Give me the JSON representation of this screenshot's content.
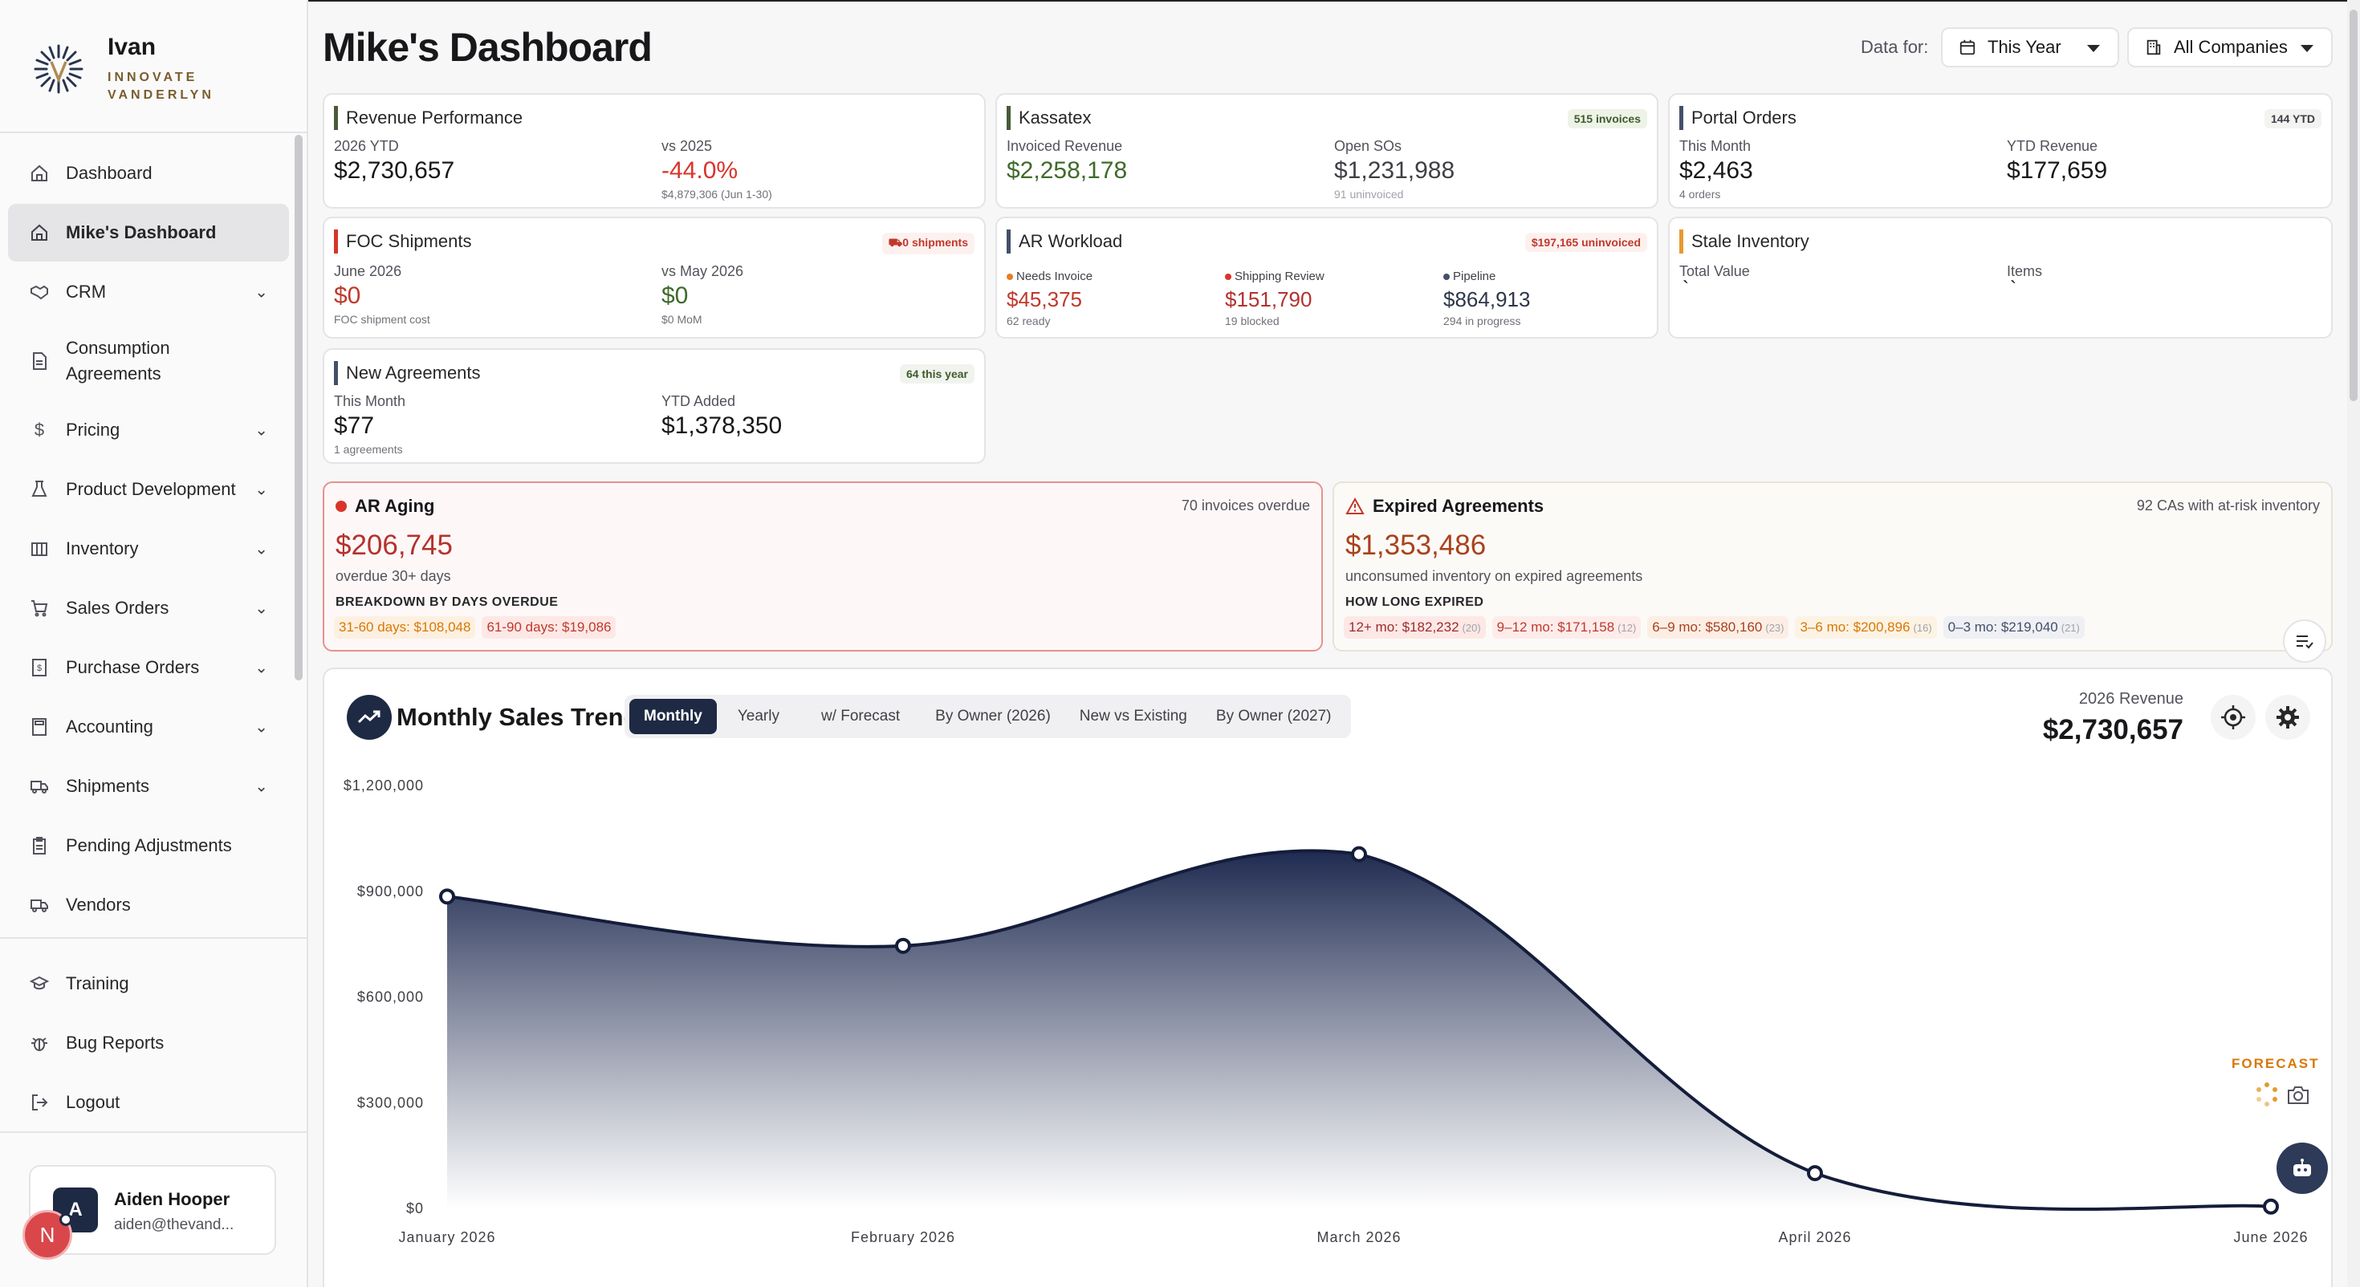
{
  "brand": {
    "name": "Ivan",
    "sub1": "INNOVATE",
    "sub2": "VANDERLYN"
  },
  "sidebar": {
    "items": [
      {
        "label": "Dashboard",
        "icon": "home-icon"
      },
      {
        "label": "Mike's Dashboard",
        "icon": "home-icon",
        "active": true
      },
      {
        "label": "CRM",
        "icon": "handshake-icon",
        "chevron": true
      },
      {
        "label": "Consumption Agreements",
        "icon": "document-icon"
      },
      {
        "label": "Pricing",
        "icon": "dollar-icon",
        "chevron": true
      },
      {
        "label": "Product Development",
        "icon": "flask-icon",
        "chevron": true
      },
      {
        "label": "Inventory",
        "icon": "warehouse-icon",
        "chevron": true
      },
      {
        "label": "Sales Orders",
        "icon": "cart-icon",
        "chevron": true
      },
      {
        "label": "Purchase Orders",
        "icon": "receipt-icon",
        "chevron": true
      },
      {
        "label": "Accounting",
        "icon": "calculator-icon",
        "chevron": true
      },
      {
        "label": "Shipments",
        "icon": "truck-icon",
        "chevron": true
      },
      {
        "label": "Pending Adjustments",
        "icon": "clipboard-icon"
      },
      {
        "label": "Vendors",
        "icon": "truck-icon"
      }
    ],
    "bottom": [
      {
        "label": "Training",
        "icon": "graduation-cap-icon"
      },
      {
        "label": "Bug Reports",
        "icon": "bug-icon"
      },
      {
        "label": "Logout",
        "icon": "logout-icon"
      }
    ]
  },
  "user": {
    "initial": "A",
    "name": "Aiden Hooper",
    "email": "aiden@thevand...",
    "notif": "N"
  },
  "header": {
    "title": "Mike's Dashboard",
    "data_for": "Data for:",
    "period": "This Year",
    "companies": "All Companies"
  },
  "cards": {
    "revenue": {
      "title": "Revenue Performance",
      "l1": "2026 YTD",
      "v1": "$2,730,657",
      "l2": "vs 2025",
      "v2": "-44.0%",
      "s2": "$4,879,306 (Jun 1-30)"
    },
    "kassatex": {
      "title": "Kassatex",
      "badge": "515 invoices",
      "l1": "Invoiced Revenue",
      "v1": "$2,258,178",
      "l2": "Open SOs",
      "v2": "$1,231,988",
      "s2": "91 uninvoiced"
    },
    "portal": {
      "title": "Portal Orders",
      "badge": "144 YTD",
      "l1": "This Month",
      "v1": "$2,463",
      "s1": "4 orders",
      "l2": "YTD Revenue",
      "v2": "$177,659"
    },
    "foc": {
      "title": "FOC Shipments",
      "badge": "0 shipments",
      "l1": "June 2026",
      "v1": "$0",
      "s1": "FOC shipment cost",
      "l2": "vs May 2026",
      "v2": "$0",
      "s2": "$0 MoM"
    },
    "ar": {
      "title": "AR Workload",
      "badge": "$197,165 uninvoiced",
      "a_l": "Needs Invoice",
      "a_v": "$45,375",
      "a_s": "62 ready",
      "b_l": "Shipping Review",
      "b_v": "$151,790",
      "b_s": "19 blocked",
      "c_l": "Pipeline",
      "c_v": "$864,913",
      "c_s": "294 in progress"
    },
    "stale": {
      "title": "Stale Inventory",
      "l1": "Total Value",
      "v1": "`",
      "l2": "Items",
      "v2": "`"
    },
    "agreements": {
      "title": "New Agreements",
      "badge": "64 this year",
      "l1": "This Month",
      "v1": "$77",
      "s1": "1 agreements",
      "l2": "YTD Added",
      "v2": "$1,378,350"
    }
  },
  "ar_aging": {
    "title": "AR Aging",
    "right": "70 invoices overdue",
    "value": "$206,745",
    "sub": "overdue 30+ days",
    "breakdown": "BREAKDOWN BY DAYS OVERDUE",
    "pills": [
      {
        "text": "31-60 days: $108,048"
      },
      {
        "text": "61-90 days: $19,086"
      }
    ]
  },
  "expired": {
    "title": "Expired Agreements",
    "right": "92 CAs with at-risk inventory",
    "value": "$1,353,486",
    "sub": "unconsumed inventory on expired agreements",
    "breakdown": "HOW LONG EXPIRED",
    "pills": [
      {
        "text": "12+ mo: $182,232",
        "count": "(20)"
      },
      {
        "text": "9–12 mo: $171,158",
        "count": "(12)"
      },
      {
        "text": "6–9 mo: $580,160",
        "count": "(23)"
      },
      {
        "text": "3–6 mo: $200,896",
        "count": "(16)"
      },
      {
        "text": "0–3 mo: $219,040",
        "count": "(21)"
      }
    ]
  },
  "sales": {
    "title": "Monthly Sales Trend",
    "tabs": [
      "Monthly",
      "Yearly",
      "w/ Forecast",
      "By Owner (2026)",
      "New vs Existing",
      "By Owner (2027)"
    ],
    "rev_label": "2026 Revenue",
    "rev_value": "$2,730,657",
    "forecast": "FORECAST"
  },
  "chart_data": {
    "type": "area",
    "categories": [
      "January 2026",
      "February 2026",
      "March 2026",
      "April 2026",
      "June 2026"
    ],
    "values": [
      885000,
      745000,
      1005000,
      100000,
      5000
    ],
    "ylim": [
      0,
      1200000
    ],
    "yticks": [
      "$0",
      "$300,000",
      "$600,000",
      "$900,000",
      "$1,200,000"
    ],
    "colors": {
      "line": "#141d3a",
      "fill_top": "#1e2a50",
      "fill_bottom": "#ffffff"
    }
  }
}
